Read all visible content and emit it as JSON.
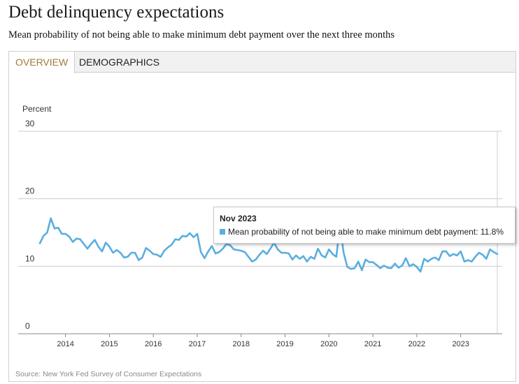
{
  "header": {
    "title": "Debt delinquency expectations",
    "subtitle": "Mean probability of not being able to make minimum debt payment over the next three months"
  },
  "tabs": [
    {
      "label": "OVERVIEW",
      "active": true
    },
    {
      "label": "DEMOGRAPHICS",
      "active": false
    }
  ],
  "colors": {
    "series": "#5aaee0",
    "tab_active_text": "#a07a3a",
    "grid": "#cccccc"
  },
  "tooltip": {
    "date": "Nov 2023",
    "text": "Mean probability of not being able to make minimum debt payment: 11.8%"
  },
  "source": "Source: New York Fed Survey of Consumer Expectations",
  "chart_data": {
    "type": "line",
    "ylabel": "Percent",
    "ylim": [
      0,
      30
    ],
    "yticks": [
      0,
      10,
      20,
      30
    ],
    "xticks": [
      "2014",
      "2015",
      "2016",
      "2017",
      "2018",
      "2019",
      "2020",
      "2021",
      "2022",
      "2023"
    ],
    "xrange": [
      "2013-06",
      "2023-11"
    ],
    "grid": true,
    "series": [
      {
        "name": "Mean probability of not being able to make minimum debt payment",
        "x": [
          "2013-06",
          "2013-07",
          "2013-08",
          "2013-09",
          "2013-10",
          "2013-11",
          "2013-12",
          "2014-01",
          "2014-02",
          "2014-03",
          "2014-04",
          "2014-05",
          "2014-06",
          "2014-07",
          "2014-08",
          "2014-09",
          "2014-10",
          "2014-11",
          "2014-12",
          "2015-01",
          "2015-02",
          "2015-03",
          "2015-04",
          "2015-05",
          "2015-06",
          "2015-07",
          "2015-08",
          "2015-09",
          "2015-10",
          "2015-11",
          "2015-12",
          "2016-01",
          "2016-02",
          "2016-03",
          "2016-04",
          "2016-05",
          "2016-06",
          "2016-07",
          "2016-08",
          "2016-09",
          "2016-10",
          "2016-11",
          "2016-12",
          "2017-01",
          "2017-02",
          "2017-03",
          "2017-04",
          "2017-05",
          "2017-06",
          "2017-07",
          "2017-08",
          "2017-09",
          "2017-10",
          "2017-11",
          "2017-12",
          "2018-01",
          "2018-02",
          "2018-03",
          "2018-04",
          "2018-05",
          "2018-06",
          "2018-07",
          "2018-08",
          "2018-09",
          "2018-10",
          "2018-11",
          "2018-12",
          "2019-01",
          "2019-02",
          "2019-03",
          "2019-04",
          "2019-05",
          "2019-06",
          "2019-07",
          "2019-08",
          "2019-09",
          "2019-10",
          "2019-11",
          "2019-12",
          "2020-01",
          "2020-02",
          "2020-03",
          "2020-04",
          "2020-05",
          "2020-06",
          "2020-07",
          "2020-08",
          "2020-09",
          "2020-10",
          "2020-11",
          "2020-12",
          "2021-01",
          "2021-02",
          "2021-03",
          "2021-04",
          "2021-05",
          "2021-06",
          "2021-07",
          "2021-08",
          "2021-09",
          "2021-10",
          "2021-11",
          "2021-12",
          "2022-01",
          "2022-02",
          "2022-03",
          "2022-04",
          "2022-05",
          "2022-06",
          "2022-07",
          "2022-08",
          "2022-09",
          "2022-10",
          "2022-11",
          "2022-12",
          "2023-01",
          "2023-02",
          "2023-03",
          "2023-04",
          "2023-05",
          "2023-06",
          "2023-07",
          "2023-08",
          "2023-09",
          "2023-10",
          "2023-11"
        ],
        "values": [
          13.4,
          14.5,
          15.0,
          17.1,
          15.6,
          15.7,
          14.8,
          14.8,
          14.4,
          13.6,
          14.1,
          14.0,
          13.3,
          12.6,
          13.3,
          13.9,
          12.9,
          12.2,
          13.5,
          12.9,
          12.0,
          12.4,
          12.0,
          11.3,
          11.4,
          12.0,
          12.0,
          10.9,
          11.3,
          12.7,
          12.3,
          11.8,
          11.7,
          11.4,
          12.3,
          12.8,
          13.2,
          14.0,
          13.9,
          14.5,
          14.4,
          14.9,
          14.3,
          14.8,
          12.1,
          11.2,
          12.2,
          13.0,
          11.9,
          12.1,
          12.6,
          13.3,
          13.1,
          12.5,
          12.4,
          12.3,
          12.1,
          11.4,
          10.7,
          11.0,
          11.7,
          12.3,
          11.8,
          12.6,
          13.5,
          12.5,
          12.0,
          12.0,
          11.9,
          11.0,
          11.6,
          11.1,
          11.5,
          10.7,
          11.4,
          11.1,
          12.6,
          11.6,
          11.3,
          12.5,
          11.8,
          11.4,
          16.0,
          12.0,
          9.9,
          9.6,
          9.7,
          10.7,
          9.4,
          11.0,
          10.6,
          10.6,
          10.2,
          9.7,
          10.1,
          9.8,
          9.7,
          10.4,
          9.8,
          10.1,
          11.2,
          10.0,
          10.3,
          9.9,
          9.2,
          11.1,
          10.7,
          11.1,
          11.3,
          10.9,
          12.2,
          12.2,
          11.5,
          11.8,
          11.6,
          12.2,
          10.7,
          10.9,
          10.7,
          11.4,
          12.0,
          11.7,
          11.1,
          12.5,
          12.1,
          11.8
        ]
      }
    ]
  }
}
